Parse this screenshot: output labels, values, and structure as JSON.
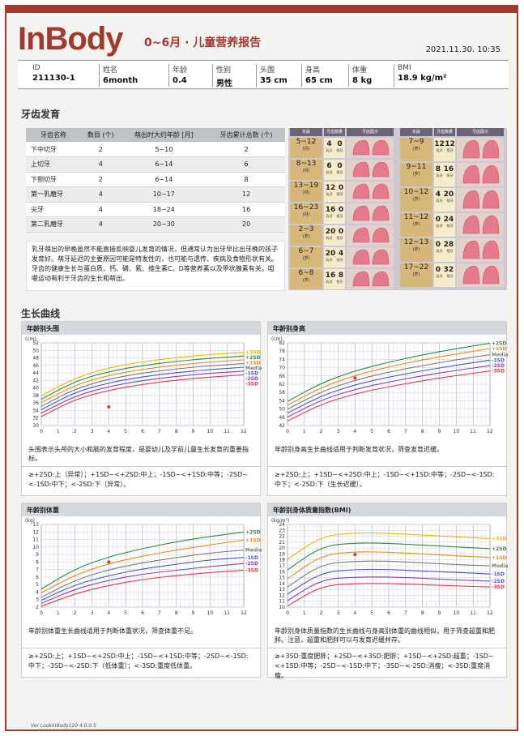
{
  "header": {
    "logo": "InBody",
    "title": "0~6月 · 儿童营养报告",
    "timestamp": "2021.11.30. 10:35"
  },
  "info": [
    {
      "label": "ID",
      "value": "211130-1"
    },
    {
      "label": "姓名",
      "value": "6month"
    },
    {
      "label": "年龄",
      "value": "0.4"
    },
    {
      "label": "性别",
      "value": "男性"
    },
    {
      "label": "头围",
      "value": "35 cm"
    },
    {
      "label": "身高",
      "value": "65 cm"
    },
    {
      "label": "体重",
      "value": "8 kg"
    },
    {
      "label": "BMI",
      "value": "18.9 kg/m²"
    }
  ],
  "teeth": {
    "section_title": "牙齿发育",
    "columns": [
      "牙齿名称",
      "数目 (个)",
      "萌出时大约年龄 [月]",
      "牙齿累计总数 (个)"
    ],
    "rows": [
      [
        "下中切牙",
        "2",
        "5~10",
        "2"
      ],
      [
        "上切牙",
        "4",
        "6~14",
        "6"
      ],
      [
        "下侧切牙",
        "2",
        "6~14",
        "8"
      ],
      [
        "第一乳磨牙",
        "4",
        "10~17",
        "12"
      ],
      [
        "尖牙",
        "4",
        "18~24",
        "16"
      ],
      [
        "第二乳磨牙",
        "4",
        "20~30",
        "20"
      ]
    ],
    "description": "乳牙萌出的早晚虽然不能直接反映婴儿发育的情况，但通常认为出牙早比出牙晚的孩子发育好。萌牙延迟的主要原因可能是特发性的，也可能与遗传、疾病及食物形状有关。牙齿的健康生长与蛋白质、钙、磷、氟、维生素C、D等营养素以及甲状腺素有关。咀嚼运动有利于牙齿的生长和萌出。",
    "chart_left": {
      "headers": [
        "年龄",
        "牙齿数量",
        "牙齿图示"
      ],
      "ages": [
        "5~12",
        "8~13",
        "13~19",
        "16~23",
        "2~3",
        "6~7",
        "6~8"
      ],
      "age_units": [
        "(月)",
        "(月)",
        "(月)",
        "(月)",
        "(岁)",
        "(岁)",
        "(岁)"
      ],
      "counts": [
        [
          "4",
          "0"
        ],
        [
          "6",
          "0"
        ],
        [
          "12",
          "0"
        ],
        [
          "16",
          "0"
        ],
        [
          "20",
          "0"
        ],
        [
          "20",
          "4"
        ],
        [
          "16",
          "8"
        ]
      ],
      "count_labels": [
        "乳牙",
        "恒牙"
      ]
    },
    "chart_right": {
      "headers": [
        "年龄",
        "牙齿数量",
        "牙齿图示"
      ],
      "ages": [
        "7~9",
        "9~11",
        "10~12",
        "11~12",
        "12~13",
        "17~22"
      ],
      "age_units": [
        "(岁)",
        "(岁)",
        "(岁)",
        "(岁)",
        "(岁)",
        "(岁)"
      ],
      "counts": [
        [
          "12",
          "12"
        ],
        [
          "8",
          "16"
        ],
        [
          "4",
          "20"
        ],
        [
          "0",
          "24"
        ],
        [
          "0",
          "28"
        ],
        [
          "0",
          "32"
        ]
      ],
      "count_labels": [
        "乳牙",
        "恒牙"
      ]
    }
  },
  "growth": {
    "section_title": "生长曲线",
    "panels": [
      {
        "title": "年龄别头围",
        "unit": "(cm)",
        "description": "头围表示头颅的大小和脑的发育程度，是婴幼儿及学前儿童生长发育的重要指标。",
        "legend": "≥+2SD:上（异常）；+1SD~<+2SD:中上；-1SD~<+1SD:中等；-2SD~<-1SD:中下；<-2SD:下（异常）。"
      },
      {
        "title": "年龄别身高",
        "unit": "(cm)",
        "description": "年龄别身高生长曲线适用于判断发育状况，筛查发育迟缓。",
        "legend": "≥+2SD:上；+1SD~<+2SD:中上；-1SD~<+1SD:中等；-2SD~<-1SD:中下；<-2SD:下（生长迟缓）。"
      },
      {
        "title": "年龄别体重",
        "unit": "(kg)",
        "description": "年龄别体重生长曲线适用于判断体重状况，筛查体重不足。",
        "legend": "≥+2SD:上；+1SD~<+2SD:中上；-1SD~<+1SD:中等；-2SD~<-1SD:中下；-3SD~<-2SD:下（低体重）；<-3SD:重度低体重。"
      },
      {
        "title": "年龄别身体质量指数(BMI)",
        "unit": "(kg/m²)",
        "description": "年龄别身体质量指数的生长曲线与身高别体重的曲线相似，用于筛查超重和肥胖。注意，超重和肥胖可以与发育迟缓并存。",
        "legend": "≥+3SD:重度肥胖；+2SD~<+3SD:肥胖；+1SD~<+2SD:超重；-1SD~<+1SD:中等；-2SD~<-1SD:中下；-3SD~<-2SD:消瘦；<-3SD:重度消瘦。"
      }
    ]
  },
  "chart_data": [
    {
      "type": "line",
      "title": "年龄别头围",
      "ylabel": "(cm)",
      "xlim": [
        0,
        12
      ],
      "ylim": [
        30,
        52
      ],
      "x_ticks": [
        0,
        1,
        2,
        3,
        4,
        5,
        6,
        7,
        8,
        9,
        10,
        11,
        12
      ],
      "y_ticks": [
        30,
        32,
        34,
        36,
        38,
        40,
        42,
        44,
        46,
        48,
        50,
        52
      ],
      "x": [
        0,
        2,
        4,
        6,
        8,
        10,
        12
      ],
      "series": [
        {
          "name": "+3SD",
          "color": "#f0b400",
          "values": [
            37.9,
            42.7,
            45.4,
            47.0,
            48.1,
            48.9,
            49.5
          ]
        },
        {
          "name": "+2SD",
          "color": "#2e8b3c",
          "values": [
            37.0,
            41.8,
            44.4,
            46.0,
            47.1,
            47.9,
            48.5
          ]
        },
        {
          "name": "+1SD",
          "color": "#ee8a1a",
          "values": [
            36.1,
            40.8,
            43.4,
            45.0,
            46.1,
            46.9,
            47.5
          ]
        },
        {
          "name": "Median",
          "color": "#7a7a7a",
          "values": [
            35.1,
            39.8,
            42.4,
            44.0,
            45.1,
            45.9,
            46.5
          ]
        },
        {
          "name": "-1SD",
          "color": "#4a57c8",
          "values": [
            34.2,
            38.9,
            41.4,
            43.0,
            44.1,
            44.9,
            45.5
          ]
        },
        {
          "name": "-2SD",
          "color": "#8a3fb5",
          "values": [
            33.3,
            37.9,
            40.4,
            42.0,
            43.1,
            43.9,
            44.5
          ]
        },
        {
          "name": "-3SD",
          "color": "#e8354a",
          "values": [
            32.4,
            37.0,
            39.4,
            41.0,
            42.1,
            42.9,
            43.5
          ]
        }
      ],
      "points": [
        {
          "x": 4,
          "y": 35
        }
      ]
    },
    {
      "type": "line",
      "title": "年龄别身高",
      "ylabel": "(cm)",
      "xlim": [
        0,
        12
      ],
      "ylim": [
        42,
        82
      ],
      "x_ticks": [
        0,
        1,
        2,
        3,
        4,
        5,
        6,
        7,
        8,
        9,
        10,
        11,
        12
      ],
      "y_ticks": [
        42,
        46,
        50,
        54,
        58,
        62,
        66,
        70,
        74,
        78,
        82
      ],
      "x": [
        0,
        2,
        4,
        6,
        8,
        10,
        12
      ],
      "series": [
        {
          "name": "+2SD",
          "color": "#2e8b3c",
          "values": [
            53.7,
            62.6,
            68.5,
            72.7,
            76.2,
            79.2,
            81.8
          ]
        },
        {
          "name": "+1SD",
          "color": "#ee8a1a",
          "values": [
            51.8,
            60.5,
            66.3,
            70.4,
            73.8,
            76.6,
            79.2
          ]
        },
        {
          "name": "Median",
          "color": "#7a7a7a",
          "values": [
            49.9,
            58.4,
            64.0,
            67.9,
            71.0,
            73.8,
            76.3
          ]
        },
        {
          "name": "-1SD",
          "color": "#4a57c8",
          "values": [
            48.0,
            56.4,
            61.8,
            65.5,
            68.5,
            71.2,
            73.6
          ]
        },
        {
          "name": "-2SD",
          "color": "#8a3fb5",
          "values": [
            46.1,
            54.4,
            59.6,
            63.1,
            66.1,
            68.7,
            71.0
          ]
        },
        {
          "name": "-3SD",
          "color": "#e8354a",
          "values": [
            44.2,
            52.4,
            57.4,
            60.8,
            63.7,
            66.2,
            68.4
          ]
        }
      ],
      "points": [
        {
          "x": 4,
          "y": 65
        }
      ]
    },
    {
      "type": "line",
      "title": "年龄别体重",
      "ylabel": "(kg)",
      "xlim": [
        0,
        12
      ],
      "ylim": [
        2,
        13
      ],
      "x_ticks": [
        0,
        1,
        2,
        3,
        4,
        5,
        6,
        7,
        8,
        9,
        10,
        11,
        12
      ],
      "y_ticks": [
        2,
        3,
        4,
        5,
        6,
        7,
        8,
        9,
        10,
        11,
        12,
        13
      ],
      "x": [
        0,
        2,
        4,
        6,
        8,
        10,
        12
      ],
      "series": [
        {
          "name": "+2SD",
          "color": "#2e8b3c",
          "values": [
            4.4,
            7.1,
            8.7,
            9.8,
            10.7,
            11.4,
            12.0
          ]
        },
        {
          "name": "+1SD",
          "color": "#ee8a1a",
          "values": [
            3.9,
            6.3,
            7.8,
            8.8,
            9.6,
            10.3,
            10.9
          ]
        },
        {
          "name": "Median",
          "color": "#7a7a7a",
          "values": [
            3.3,
            5.6,
            7.0,
            7.9,
            8.6,
            9.2,
            9.6
          ]
        },
        {
          "name": "-1SD",
          "color": "#4a57c8",
          "values": [
            2.9,
            5.0,
            6.2,
            7.1,
            7.7,
            8.3,
            8.6
          ]
        },
        {
          "name": "-2SD",
          "color": "#8a3fb5",
          "values": [
            2.5,
            4.4,
            5.6,
            6.4,
            6.9,
            7.4,
            7.8
          ]
        },
        {
          "name": "-3SD",
          "color": "#e8354a",
          "values": [
            2.1,
            3.8,
            4.9,
            5.7,
            6.2,
            6.6,
            6.9
          ]
        }
      ],
      "points": [
        {
          "x": 4,
          "y": 8
        }
      ]
    },
    {
      "type": "line",
      "title": "年龄别身体质量指数(BMI)",
      "ylabel": "(kg/m²)",
      "xlim": [
        0,
        12
      ],
      "ylim": [
        10,
        24
      ],
      "x_ticks": [
        0,
        1,
        2,
        3,
        4,
        5,
        6,
        7,
        8,
        9,
        10,
        11,
        12
      ],
      "y_ticks": [
        10,
        11,
        12,
        13,
        14,
        15,
        16,
        17,
        18,
        19,
        20,
        21,
        22,
        23,
        24
      ],
      "x": [
        0,
        2,
        4,
        6,
        8,
        10,
        12
      ],
      "series": [
        {
          "name": "+3SD",
          "color": "#f0b400",
          "values": [
            18.1,
            22.0,
            22.6,
            22.5,
            22.2,
            21.9,
            21.6
          ]
        },
        {
          "name": "+2SD",
          "color": "#2e8b3c",
          "values": [
            16.3,
            20.3,
            20.9,
            20.8,
            20.5,
            20.2,
            19.9
          ]
        },
        {
          "name": "+1SD",
          "color": "#ee8a1a",
          "values": [
            14.8,
            18.8,
            19.4,
            19.3,
            19.0,
            18.7,
            18.4
          ]
        },
        {
          "name": "Median",
          "color": "#7a7a7a",
          "values": [
            13.4,
            17.3,
            17.8,
            17.8,
            17.5,
            17.2,
            17.0
          ]
        },
        {
          "name": "-1SD",
          "color": "#4a57c8",
          "values": [
            12.2,
            15.9,
            16.4,
            16.4,
            16.1,
            15.9,
            15.6
          ]
        },
        {
          "name": "-2SD",
          "color": "#8a3fb5",
          "values": [
            11.1,
            14.7,
            15.1,
            15.1,
            14.9,
            14.6,
            14.4
          ]
        },
        {
          "name": "-3SD",
          "color": "#e8354a",
          "values": [
            10.2,
            13.6,
            14.0,
            14.0,
            13.8,
            13.6,
            13.4
          ]
        }
      ],
      "points": [
        {
          "x": 4,
          "y": 18.9
        }
      ]
    }
  ],
  "footer": "Ver LookinBody120 4.0.0.5",
  "colors": {
    "brand": "#a03a2c",
    "header_bar": "#d5d8dc"
  }
}
